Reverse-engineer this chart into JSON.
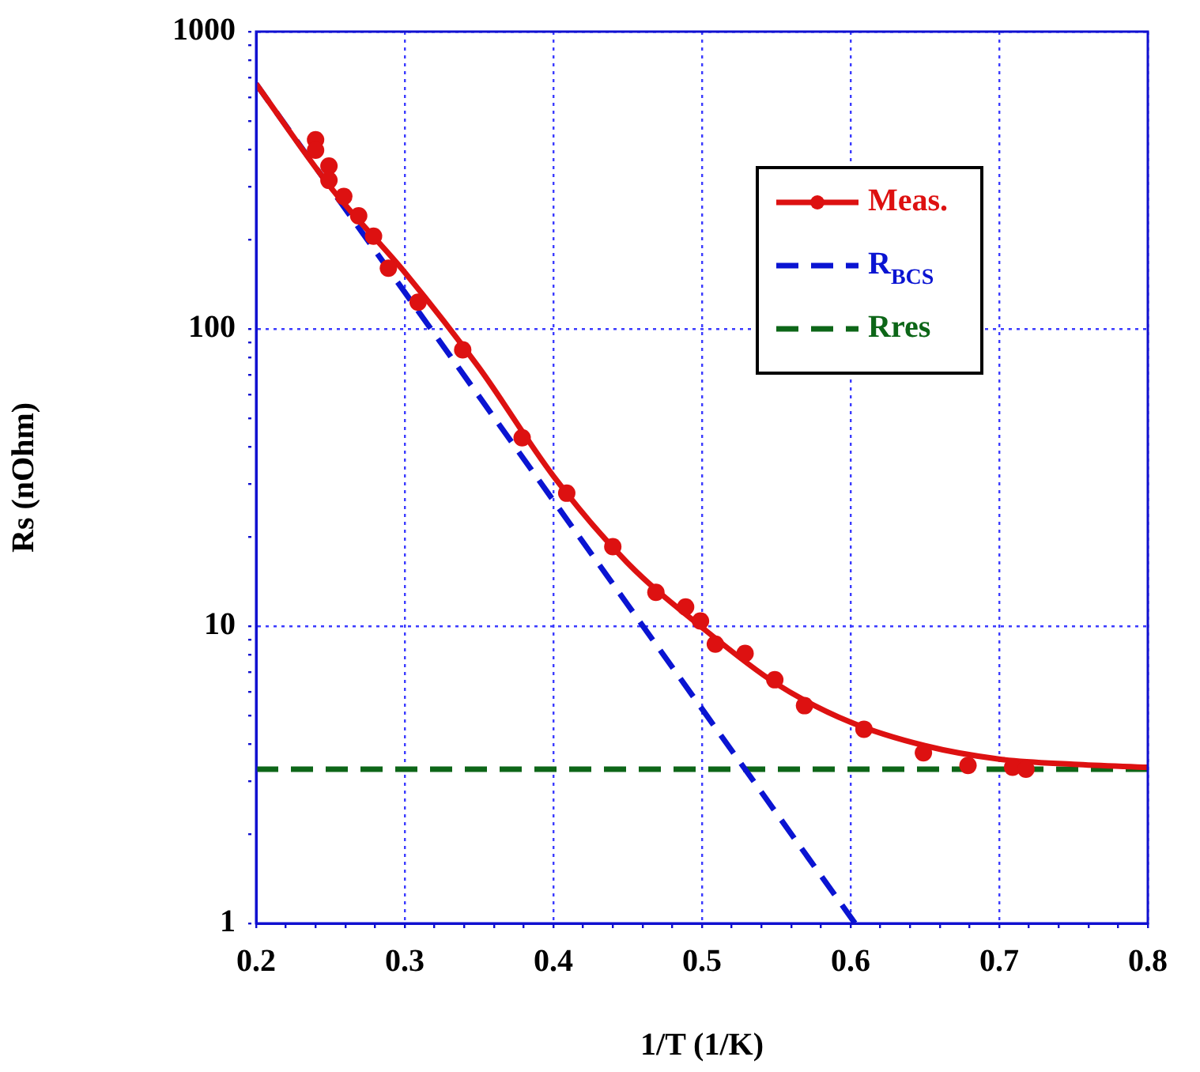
{
  "chart_data": {
    "type": "scatter",
    "xlabel": "1/T (1/K)",
    "ylabel": "Rs (nOhm)",
    "log": "y",
    "grid": true,
    "legend": "top right",
    "xlim": [
      0.2,
      0.8
    ],
    "xticks": [
      0.2,
      {
        "value": 0.22,
        "label": null
      },
      {
        "value": 0.24,
        "label": null
      },
      {
        "value": 0.26,
        "label": null
      },
      {
        "value": 0.28,
        "label": null
      },
      0.3,
      {
        "value": 0.32,
        "label": null
      },
      {
        "value": 0.34,
        "label": null
      },
      {
        "value": 0.36,
        "label": null
      },
      {
        "value": 0.38,
        "label": null
      },
      0.4,
      {
        "value": 0.42,
        "label": null
      },
      {
        "value": 0.44,
        "label": null
      },
      {
        "value": 0.46,
        "label": null
      },
      {
        "value": 0.48,
        "label": null
      },
      0.5,
      {
        "value": 0.52,
        "label": null
      },
      {
        "value": 0.54,
        "label": null
      },
      {
        "value": 0.56,
        "label": null
      },
      {
        "value": 0.58,
        "label": null
      },
      0.6,
      {
        "value": 0.62,
        "label": null
      },
      {
        "value": 0.64,
        "label": null
      },
      {
        "value": 0.66,
        "label": null
      },
      {
        "value": 0.68,
        "label": null
      },
      0.7,
      {
        "value": 0.72,
        "label": null
      },
      {
        "value": 0.74,
        "label": null
      },
      {
        "value": 0.76,
        "label": null
      },
      {
        "value": 0.78,
        "label": null
      },
      0.8
    ],
    "ylim": [
      1,
      1000
    ],
    "yticks": [
      1,
      {
        "value": 2,
        "label": null
      },
      {
        "value": 3,
        "label": null
      },
      {
        "value": 4,
        "label": null
      },
      {
        "value": 5,
        "label": null
      },
      {
        "value": 6,
        "label": null
      },
      {
        "value": 7,
        "label": null
      },
      {
        "value": 8,
        "label": null
      },
      {
        "value": 9,
        "label": null
      },
      10,
      {
        "value": 20,
        "label": null
      },
      {
        "value": 30,
        "label": null
      },
      {
        "value": 40,
        "label": null
      },
      {
        "value": 50,
        "label": null
      },
      {
        "value": 60,
        "label": null
      },
      {
        "value": 70,
        "label": null
      },
      {
        "value": 80,
        "label": null
      },
      {
        "value": 90,
        "label": null
      },
      100,
      {
        "value": 200,
        "label": null
      },
      {
        "value": 300,
        "label": null
      },
      {
        "value": 400,
        "label": null
      },
      {
        "value": 500,
        "label": null
      },
      {
        "value": 600,
        "label": null
      },
      {
        "value": 700,
        "label": null
      },
      {
        "value": 800,
        "label": null
      },
      {
        "value": 900,
        "label": null
      },
      1000
    ],
    "series": [
      {
        "name": "Meas.",
        "marker": "circle",
        "color": "#dd1111",
        "x": [
          0.24,
          0.24,
          0.249,
          0.249,
          0.259,
          0.269,
          0.279,
          0.289,
          0.309,
          0.339,
          0.379,
          0.409,
          0.44,
          0.469,
          0.489,
          0.499,
          0.509,
          0.529,
          0.549,
          0.569,
          0.609,
          0.649,
          0.679,
          0.709,
          0.718
        ],
        "values": [
          433,
          399,
          353,
          316,
          279,
          240,
          205,
          160,
          123,
          85,
          43,
          28,
          18.5,
          13,
          11.6,
          10.4,
          8.7,
          8.1,
          6.6,
          5.4,
          4.5,
          3.75,
          3.4,
          3.35,
          3.3
        ]
      },
      {
        "type": "line",
        "marker": "none",
        "line_style": "solid",
        "color": "#dd1111",
        "x": [
          0.2,
          0.25,
          0.3,
          0.35,
          0.4,
          0.45,
          0.5,
          0.55,
          0.6,
          0.65,
          0.7,
          0.75,
          0.8
        ],
        "values": [
          667,
          300,
          155,
          74,
          32,
          16.3,
          9.9,
          6.4,
          4.75,
          3.96,
          3.57,
          3.43,
          3.35
        ]
      },
      {
        "name": "R$_{BCS}$",
        "type": "line",
        "marker": "none",
        "line_style": "dashed",
        "color": "#0a14d2",
        "x": [
          0.2,
          0.603
        ],
        "values": [
          667,
          1
        ]
      },
      {
        "name": "Rres",
        "type": "line",
        "marker": "none",
        "line_style": "dashed",
        "color": "#0d6618",
        "x": [
          0.2,
          0.8
        ],
        "values": [
          3.3,
          3.3
        ]
      }
    ]
  }
}
